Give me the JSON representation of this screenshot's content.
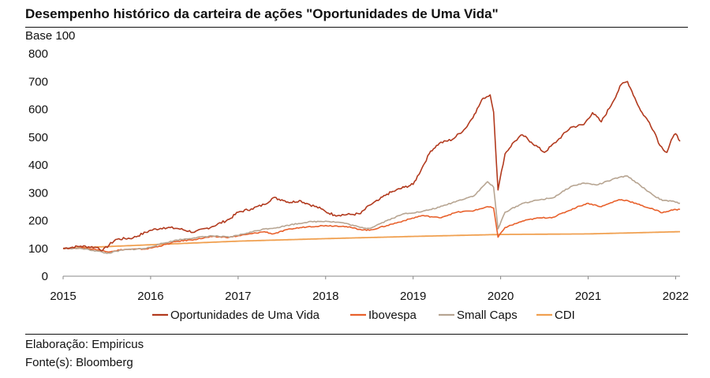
{
  "title": "Desempenho histórico da carteira de ações \"Oportunidades de Uma Vida\"",
  "footer": {
    "elaboration": "Elaboração: Empiricus",
    "source": "Fonte(s): Bloomberg"
  },
  "chart_data": {
    "type": "line",
    "title": "Desempenho histórico da carteira de ações \"Oportunidades de Uma Vida\"",
    "ylabel": "Base 100",
    "xlabel": "",
    "xlim": [
      2015,
      2022.05
    ],
    "ylim": [
      0,
      800
    ],
    "x_ticks": [
      2015,
      2016,
      2017,
      2018,
      2019,
      2020,
      2021,
      2022
    ],
    "y_ticks": [
      0,
      100,
      200,
      300,
      400,
      500,
      600,
      700,
      800
    ],
    "grid": false,
    "legend_position": "bottom",
    "series": [
      {
        "name": "Oportunidades de Uma Vida",
        "color": "#B23A1E",
        "points": [
          [
            2015.0,
            100
          ],
          [
            2015.2,
            108
          ],
          [
            2015.4,
            103
          ],
          [
            2015.45,
            92
          ],
          [
            2015.6,
            132
          ],
          [
            2015.8,
            138
          ],
          [
            2016.0,
            165
          ],
          [
            2016.15,
            175
          ],
          [
            2016.3,
            172
          ],
          [
            2016.5,
            158
          ],
          [
            2016.7,
            178
          ],
          [
            2016.9,
            205
          ],
          [
            2017.0,
            230
          ],
          [
            2017.15,
            242
          ],
          [
            2017.3,
            258
          ],
          [
            2017.4,
            282
          ],
          [
            2017.5,
            275
          ],
          [
            2017.6,
            265
          ],
          [
            2017.7,
            272
          ],
          [
            2017.8,
            260
          ],
          [
            2017.95,
            242
          ],
          [
            2018.0,
            232
          ],
          [
            2018.1,
            220
          ],
          [
            2018.3,
            222
          ],
          [
            2018.4,
            225
          ],
          [
            2018.5,
            255
          ],
          [
            2018.6,
            272
          ],
          [
            2018.7,
            295
          ],
          [
            2018.8,
            308
          ],
          [
            2018.9,
            320
          ],
          [
            2019.0,
            330
          ],
          [
            2019.1,
            388
          ],
          [
            2019.2,
            450
          ],
          [
            2019.3,
            478
          ],
          [
            2019.45,
            492
          ],
          [
            2019.6,
            532
          ],
          [
            2019.7,
            582
          ],
          [
            2019.8,
            640
          ],
          [
            2019.88,
            652
          ],
          [
            2019.92,
            590
          ],
          [
            2019.97,
            310
          ],
          [
            2020.05,
            440
          ],
          [
            2020.15,
            482
          ],
          [
            2020.25,
            508
          ],
          [
            2020.35,
            482
          ],
          [
            2020.5,
            445
          ],
          [
            2020.65,
            488
          ],
          [
            2020.8,
            535
          ],
          [
            2020.95,
            545
          ],
          [
            2021.05,
            588
          ],
          [
            2021.15,
            555
          ],
          [
            2021.28,
            625
          ],
          [
            2021.38,
            690
          ],
          [
            2021.45,
            700
          ],
          [
            2021.5,
            665
          ],
          [
            2021.6,
            595
          ],
          [
            2021.7,
            552
          ],
          [
            2021.77,
            510
          ],
          [
            2021.82,
            470
          ],
          [
            2021.9,
            445
          ],
          [
            2021.95,
            490
          ],
          [
            2022.0,
            512
          ],
          [
            2022.05,
            485
          ]
        ]
      },
      {
        "name": "Ibovespa",
        "color": "#E8612C",
        "points": [
          [
            2015.0,
            100
          ],
          [
            2015.2,
            102
          ],
          [
            2015.4,
            95
          ],
          [
            2015.5,
            88
          ],
          [
            2015.7,
            96
          ],
          [
            2015.95,
            98
          ],
          [
            2016.1,
            108
          ],
          [
            2016.3,
            125
          ],
          [
            2016.5,
            132
          ],
          [
            2016.7,
            142
          ],
          [
            2016.9,
            140
          ],
          [
            2017.1,
            150
          ],
          [
            2017.3,
            160
          ],
          [
            2017.4,
            152
          ],
          [
            2017.6,
            170
          ],
          [
            2017.8,
            178
          ],
          [
            2018.0,
            182
          ],
          [
            2018.2,
            180
          ],
          [
            2018.4,
            168
          ],
          [
            2018.5,
            165
          ],
          [
            2018.7,
            182
          ],
          [
            2018.9,
            200
          ],
          [
            2019.1,
            218
          ],
          [
            2019.3,
            210
          ],
          [
            2019.5,
            230
          ],
          [
            2019.7,
            236
          ],
          [
            2019.85,
            250
          ],
          [
            2019.92,
            245
          ],
          [
            2019.97,
            140
          ],
          [
            2020.05,
            175
          ],
          [
            2020.25,
            198
          ],
          [
            2020.4,
            208
          ],
          [
            2020.6,
            212
          ],
          [
            2020.75,
            232
          ],
          [
            2020.9,
            252
          ],
          [
            2021.0,
            262
          ],
          [
            2021.15,
            250
          ],
          [
            2021.35,
            275
          ],
          [
            2021.45,
            272
          ],
          [
            2021.6,
            255
          ],
          [
            2021.75,
            240
          ],
          [
            2021.85,
            228
          ],
          [
            2021.95,
            238
          ],
          [
            2022.05,
            240
          ]
        ]
      },
      {
        "name": "Small Caps",
        "color": "#B7A592",
        "points": [
          [
            2015.0,
            100
          ],
          [
            2015.2,
            100
          ],
          [
            2015.4,
            90
          ],
          [
            2015.5,
            82
          ],
          [
            2015.7,
            95
          ],
          [
            2015.95,
            100
          ],
          [
            2016.1,
            115
          ],
          [
            2016.3,
            130
          ],
          [
            2016.5,
            138
          ],
          [
            2016.7,
            145
          ],
          [
            2016.9,
            140
          ],
          [
            2017.1,
            155
          ],
          [
            2017.3,
            170
          ],
          [
            2017.45,
            175
          ],
          [
            2017.6,
            185
          ],
          [
            2017.8,
            195
          ],
          [
            2018.0,
            198
          ],
          [
            2018.2,
            192
          ],
          [
            2018.4,
            175
          ],
          [
            2018.5,
            172
          ],
          [
            2018.7,
            200
          ],
          [
            2018.9,
            225
          ],
          [
            2019.1,
            232
          ],
          [
            2019.3,
            248
          ],
          [
            2019.5,
            270
          ],
          [
            2019.7,
            290
          ],
          [
            2019.85,
            340
          ],
          [
            2019.92,
            320
          ],
          [
            2019.97,
            170
          ],
          [
            2020.05,
            230
          ],
          [
            2020.25,
            262
          ],
          [
            2020.45,
            275
          ],
          [
            2020.6,
            282
          ],
          [
            2020.8,
            322
          ],
          [
            2020.95,
            335
          ],
          [
            2021.1,
            328
          ],
          [
            2021.35,
            355
          ],
          [
            2021.45,
            360
          ],
          [
            2021.6,
            325
          ],
          [
            2021.75,
            290
          ],
          [
            2021.85,
            272
          ],
          [
            2021.95,
            270
          ],
          [
            2022.05,
            262
          ]
        ]
      },
      {
        "name": "CDI",
        "color": "#F0A050",
        "points": [
          [
            2015.0,
            100
          ],
          [
            2016.0,
            113
          ],
          [
            2017.0,
            126
          ],
          [
            2018.0,
            135
          ],
          [
            2019.0,
            143
          ],
          [
            2020.0,
            150
          ],
          [
            2021.0,
            152
          ],
          [
            2022.05,
            160
          ]
        ]
      }
    ]
  }
}
